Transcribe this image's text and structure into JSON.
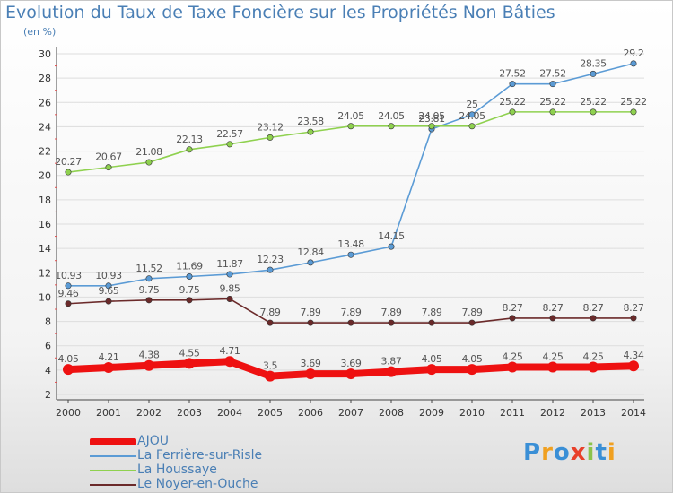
{
  "title": "Evolution du Taux de Taxe Foncière sur les Propriétés Non Bâties",
  "unit_label": "(en %)",
  "brand": "Proxiti",
  "colors": {
    "title": "#4a7fb5",
    "axis": "#444444",
    "grid": "#dddddd"
  },
  "chart_data": {
    "type": "line",
    "title": "Evolution du Taux de Taxe Foncière sur les Propriétés Non Bâties",
    "ylabel": "(en %)",
    "xlabel": "",
    "x": [
      "2000",
      "2001",
      "2002",
      "2003",
      "2004",
      "2005",
      "2006",
      "2007",
      "2008",
      "2009",
      "2010",
      "2011",
      "2012",
      "2013",
      "2014"
    ],
    "ylim": [
      2,
      30
    ],
    "yticks": [
      "2",
      "4",
      "6",
      "8",
      "10",
      "12",
      "14",
      "16",
      "18",
      "20",
      "22",
      "24",
      "26",
      "28",
      "30"
    ],
    "legend_position": "bottom-left",
    "series": [
      {
        "name": "AJOU",
        "color": "#ee1111",
        "thick": true,
        "values": [
          4.05,
          4.21,
          4.38,
          4.55,
          4.71,
          3.5,
          3.69,
          3.69,
          3.87,
          4.05,
          4.05,
          4.25,
          4.25,
          4.25,
          4.34
        ],
        "labels": [
          "4.05",
          "4.21",
          "4.38",
          "4.55",
          "4.71",
          "3.5",
          "3.69",
          "3.69",
          "3.87",
          "4.05",
          "4.05",
          "4.25",
          "4.25",
          "4.25",
          "4.34"
        ]
      },
      {
        "name": "La Ferrière-sur-Risle",
        "color": "#5b9bd5",
        "thick": false,
        "values": [
          10.93,
          10.93,
          11.52,
          11.69,
          11.87,
          12.23,
          12.84,
          13.48,
          14.15,
          23.81,
          25,
          27.52,
          27.52,
          28.35,
          29.2
        ],
        "labels": [
          "10.93",
          "10.93",
          "11.52",
          "11.69",
          "11.87",
          "12.23",
          "12.84",
          "13.48",
          "14.15",
          "23.81",
          "25",
          "27.52",
          "27.52",
          "28.35",
          "29.2"
        ]
      },
      {
        "name": "La Houssaye",
        "color": "#8fd14f",
        "thick": false,
        "values": [
          20.27,
          20.67,
          21.08,
          22.13,
          22.57,
          23.12,
          23.58,
          24.05,
          24.05,
          24.05,
          24.05,
          25.22,
          25.22,
          25.22,
          25.22
        ],
        "labels": [
          "20.27",
          "20.67",
          "21.08",
          "22.13",
          "22.57",
          "23.12",
          "23.58",
          "24.05",
          "24.05",
          "24.05",
          "24.05",
          "25.22",
          "25.22",
          "25.22",
          "25.22"
        ]
      },
      {
        "name": "Le Noyer-en-Ouche",
        "color": "#6b2a2a",
        "thick": false,
        "values": [
          9.46,
          9.65,
          9.75,
          9.75,
          9.85,
          7.89,
          7.89,
          7.89,
          7.89,
          7.89,
          7.89,
          8.27,
          8.27,
          8.27,
          8.27
        ],
        "labels": [
          "9.46",
          "9.65",
          "9.75",
          "9.75",
          "9.85",
          "7.89",
          "7.89",
          "7.89",
          "7.89",
          "7.89",
          "7.89",
          "8.27",
          "8.27",
          "8.27",
          "8.27"
        ]
      }
    ]
  }
}
